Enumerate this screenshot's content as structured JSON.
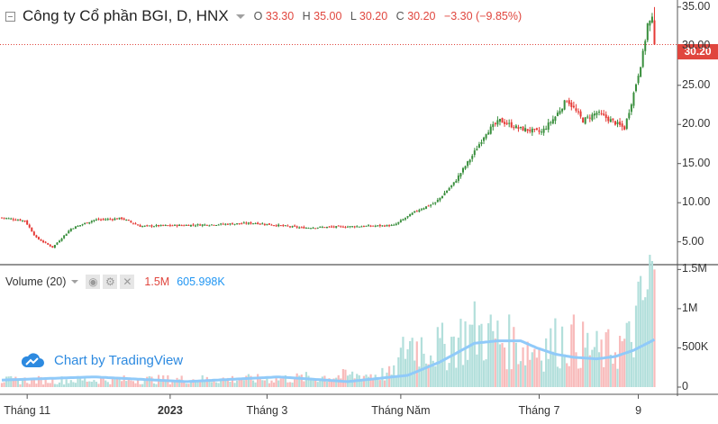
{
  "legend": {
    "title": "Công ty Cổ phần BGI, D, HNX",
    "o_label": "O",
    "o_value": "33.30",
    "h_label": "H",
    "h_value": "35.00",
    "l_label": "L",
    "l_value": "30.20",
    "c_label": "C",
    "c_value": "30.20",
    "change": "−3.30 (−9.85%)"
  },
  "last_price_label": "30.20",
  "volume_legend": {
    "title": "Volume (20)",
    "value_a": "1.5M",
    "value_b": "605.998K"
  },
  "brand": {
    "text": "Chart by TradingView"
  },
  "colors": {
    "up": "#26a69a",
    "down": "#ef5350",
    "candle_up": "#388e3c",
    "candle_down": "#e53935",
    "volume_up": "#b2dfdb",
    "volume_down": "#f8bbbb",
    "volume_ma": "#90caf9",
    "price_line": "#e0463e",
    "brand": "#2d8ae0"
  },
  "chart_data": [
    {
      "type": "candlestick",
      "title": "Công ty Cổ phần BGI, D, HNX",
      "interval": "D",
      "price_axis": {
        "ticks": [
          "5.00",
          "10.00",
          "15.00",
          "20.00",
          "25.00",
          "30.00",
          "35.00"
        ],
        "ylim": [
          2.2,
          35.9
        ]
      },
      "time_axis": {
        "labels": [
          "Tháng 11",
          "2023",
          "Tháng 3",
          "Tháng Năm",
          "Tháng 7",
          "9"
        ],
        "bold_labels": [
          "2023"
        ],
        "label_positions": [
          {
            "label": "Tháng 11",
            "candle": 11
          },
          {
            "label": "2023",
            "candle": 73
          },
          {
            "label": "Tháng 3",
            "candle": 115
          },
          {
            "label": "Tháng Năm",
            "candle": 173
          },
          {
            "label": "Tháng 7",
            "candle": 233
          },
          {
            "label": "9",
            "candle": 276
          }
        ]
      },
      "close_keypoints": [
        [
          0,
          8.1
        ],
        [
          10,
          7.7
        ],
        [
          15,
          5.5
        ],
        [
          22,
          4.3
        ],
        [
          30,
          6.7
        ],
        [
          40,
          7.8
        ],
        [
          52,
          8.0
        ],
        [
          60,
          7.0
        ],
        [
          90,
          7.2
        ],
        [
          110,
          7.4
        ],
        [
          130,
          6.8
        ],
        [
          170,
          7.1
        ],
        [
          180,
          9.0
        ],
        [
          188,
          10.0
        ],
        [
          196,
          12.5
        ],
        [
          204,
          16.0
        ],
        [
          210,
          19.0
        ],
        [
          216,
          20.5
        ],
        [
          224,
          19.5
        ],
        [
          234,
          19.0
        ],
        [
          240,
          21.0
        ],
        [
          245,
          23.2
        ],
        [
          252,
          20.5
        ],
        [
          258,
          21.5
        ],
        [
          266,
          20.2
        ],
        [
          270,
          19.5
        ],
        [
          274,
          24.0
        ],
        [
          278,
          29.0
        ],
        [
          280,
          32.8
        ],
        [
          282,
          33.3
        ],
        [
          283,
          30.2
        ]
      ],
      "last_candle": {
        "open": 33.3,
        "high": 35.0,
        "low": 30.2,
        "close": 30.2
      },
      "last_price": 30.2
    },
    {
      "type": "bar",
      "title": "Volume (20)",
      "value_axis": {
        "ticks": [
          "0",
          "500K",
          "1M",
          "1.5M"
        ],
        "ylim": [
          0,
          1550000
        ]
      },
      "volume_keypoints": [
        [
          0,
          90000
        ],
        [
          60,
          100000
        ],
        [
          120,
          110000
        ],
        [
          170,
          180000
        ],
        [
          176,
          600000
        ],
        [
          190,
          520000
        ],
        [
          205,
          750000
        ],
        [
          215,
          650000
        ],
        [
          230,
          500000
        ],
        [
          245,
          650000
        ],
        [
          260,
          450000
        ],
        [
          272,
          600000
        ],
        [
          278,
          1100000
        ],
        [
          283,
          1500000
        ]
      ],
      "ma_keypoints": [
        [
          0,
          90000
        ],
        [
          40,
          130000
        ],
        [
          80,
          70000
        ],
        [
          120,
          130000
        ],
        [
          150,
          70000
        ],
        [
          176,
          150000
        ],
        [
          190,
          320000
        ],
        [
          205,
          560000
        ],
        [
          215,
          590000
        ],
        [
          225,
          590000
        ],
        [
          232,
          500000
        ],
        [
          240,
          420000
        ],
        [
          248,
          380000
        ],
        [
          258,
          360000
        ],
        [
          266,
          390000
        ],
        [
          274,
          470000
        ],
        [
          283,
          606000
        ]
      ],
      "last_values": {
        "volume": 1500000,
        "ma": 605998
      }
    }
  ]
}
